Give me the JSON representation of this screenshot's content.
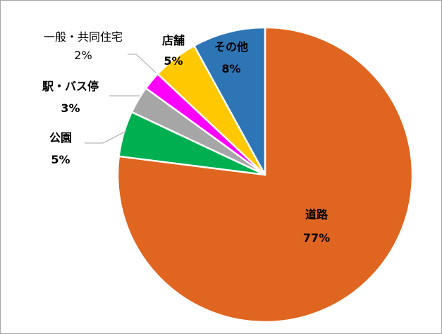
{
  "chart_data": {
    "type": "pie",
    "start_angle_deg": 0,
    "direction": "clockwise",
    "slices": [
      {
        "name": "道路",
        "value": 77,
        "label": "77%",
        "color": "#E06520",
        "label_weight": "bold",
        "label_inside": true
      },
      {
        "name": "公園",
        "value": 5,
        "label": "5%",
        "color": "#00B050",
        "label_weight": "bold",
        "label_inside": false
      },
      {
        "name": "駅・バス停",
        "value": 3,
        "label": "3%",
        "color": "#A6A6A6",
        "label_weight": "bold",
        "label_inside": false
      },
      {
        "name": "一般・共同住宅",
        "value": 2,
        "label": "2%",
        "color": "#FF00FF",
        "label_weight": "normal",
        "label_inside": false
      },
      {
        "name": "店舗",
        "value": 5,
        "label": "5%",
        "color": "#FFC800",
        "label_weight": "bold",
        "label_inside": true
      },
      {
        "name": "その他",
        "value": 8,
        "label": "8%",
        "color": "#2E75B6",
        "label_weight": "bold",
        "label_inside": true
      }
    ],
    "slice_border_color": "#ffffff",
    "leader_line_color": "#a6a6a6",
    "legend": "none"
  }
}
